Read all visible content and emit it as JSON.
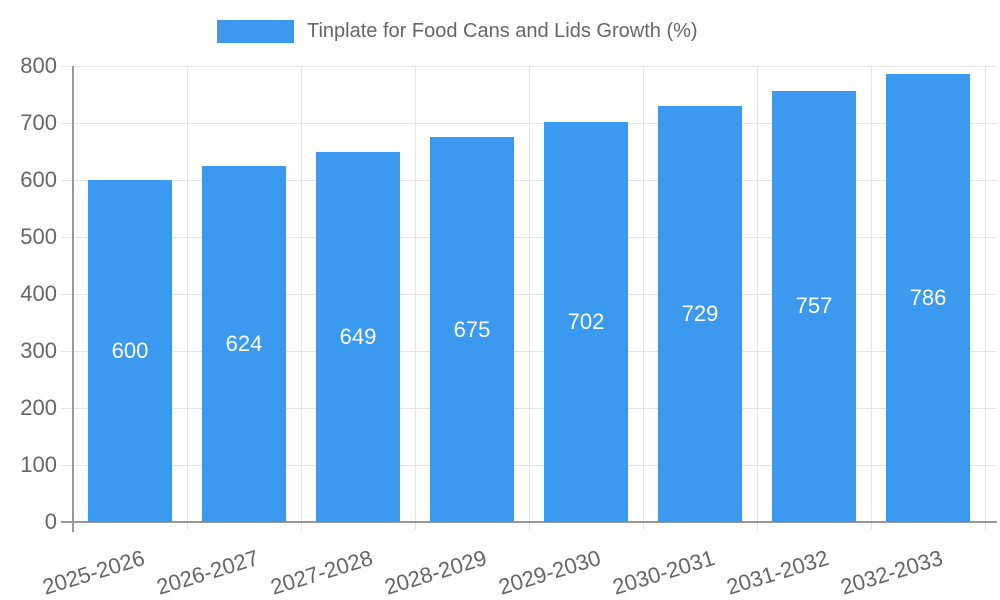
{
  "chart_data": {
    "type": "bar",
    "title": "",
    "legend": {
      "position": "top",
      "label": "Tinplate for Food Cans and Lids Growth (%)"
    },
    "categories": [
      "2025-2026",
      "2026-2027",
      "2027-2028",
      "2028-2029",
      "2029-2030",
      "2030-2031",
      "2031-2032",
      "2032-2033"
    ],
    "series": [
      {
        "name": "Tinplate for Food Cans and Lids Growth (%)",
        "values": [
          600,
          624,
          649,
          675,
          702,
          729,
          757,
          786
        ]
      }
    ],
    "value_labels": [
      "600",
      "624",
      "649",
      "675",
      "702",
      "729",
      "757",
      "786"
    ],
    "xlabel": "",
    "ylabel": "",
    "ylim": [
      0,
      800
    ],
    "yticks": [
      0,
      100,
      200,
      300,
      400,
      500,
      600,
      700,
      800
    ],
    "grid": true,
    "x_label_rotation_deg": -17,
    "colors": {
      "bar": "#3B99F0",
      "value_label": "#FFFFFF",
      "tick_label": "#666666",
      "legend_text": "#666666",
      "gridline": "#E5E5E5",
      "axis_line": "#999999",
      "background": "#FFFFFF"
    }
  }
}
